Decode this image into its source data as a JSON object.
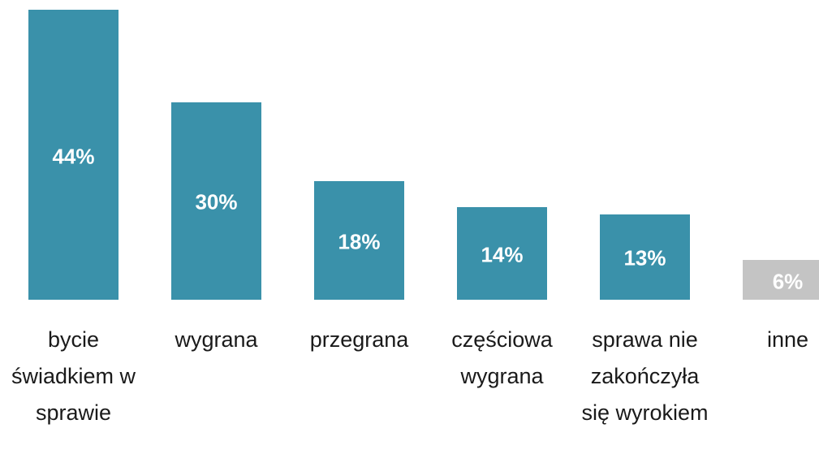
{
  "chart_data": {
    "type": "bar",
    "categories": [
      "bycie świadkiem w sprawie",
      "wygrana",
      "przegrana",
      "częściowa wygrana",
      "sprawa nie zakończyła się wyrokiem",
      "inne"
    ],
    "values": [
      44,
      30,
      18,
      14,
      13,
      6
    ],
    "value_labels": [
      "44%",
      "30%",
      "18%",
      "14%",
      "13%",
      "6%"
    ],
    "colors": [
      "#3a91aa",
      "#3a91aa",
      "#3a91aa",
      "#3a91aa",
      "#3a91aa",
      "#c4c4c4"
    ]
  }
}
